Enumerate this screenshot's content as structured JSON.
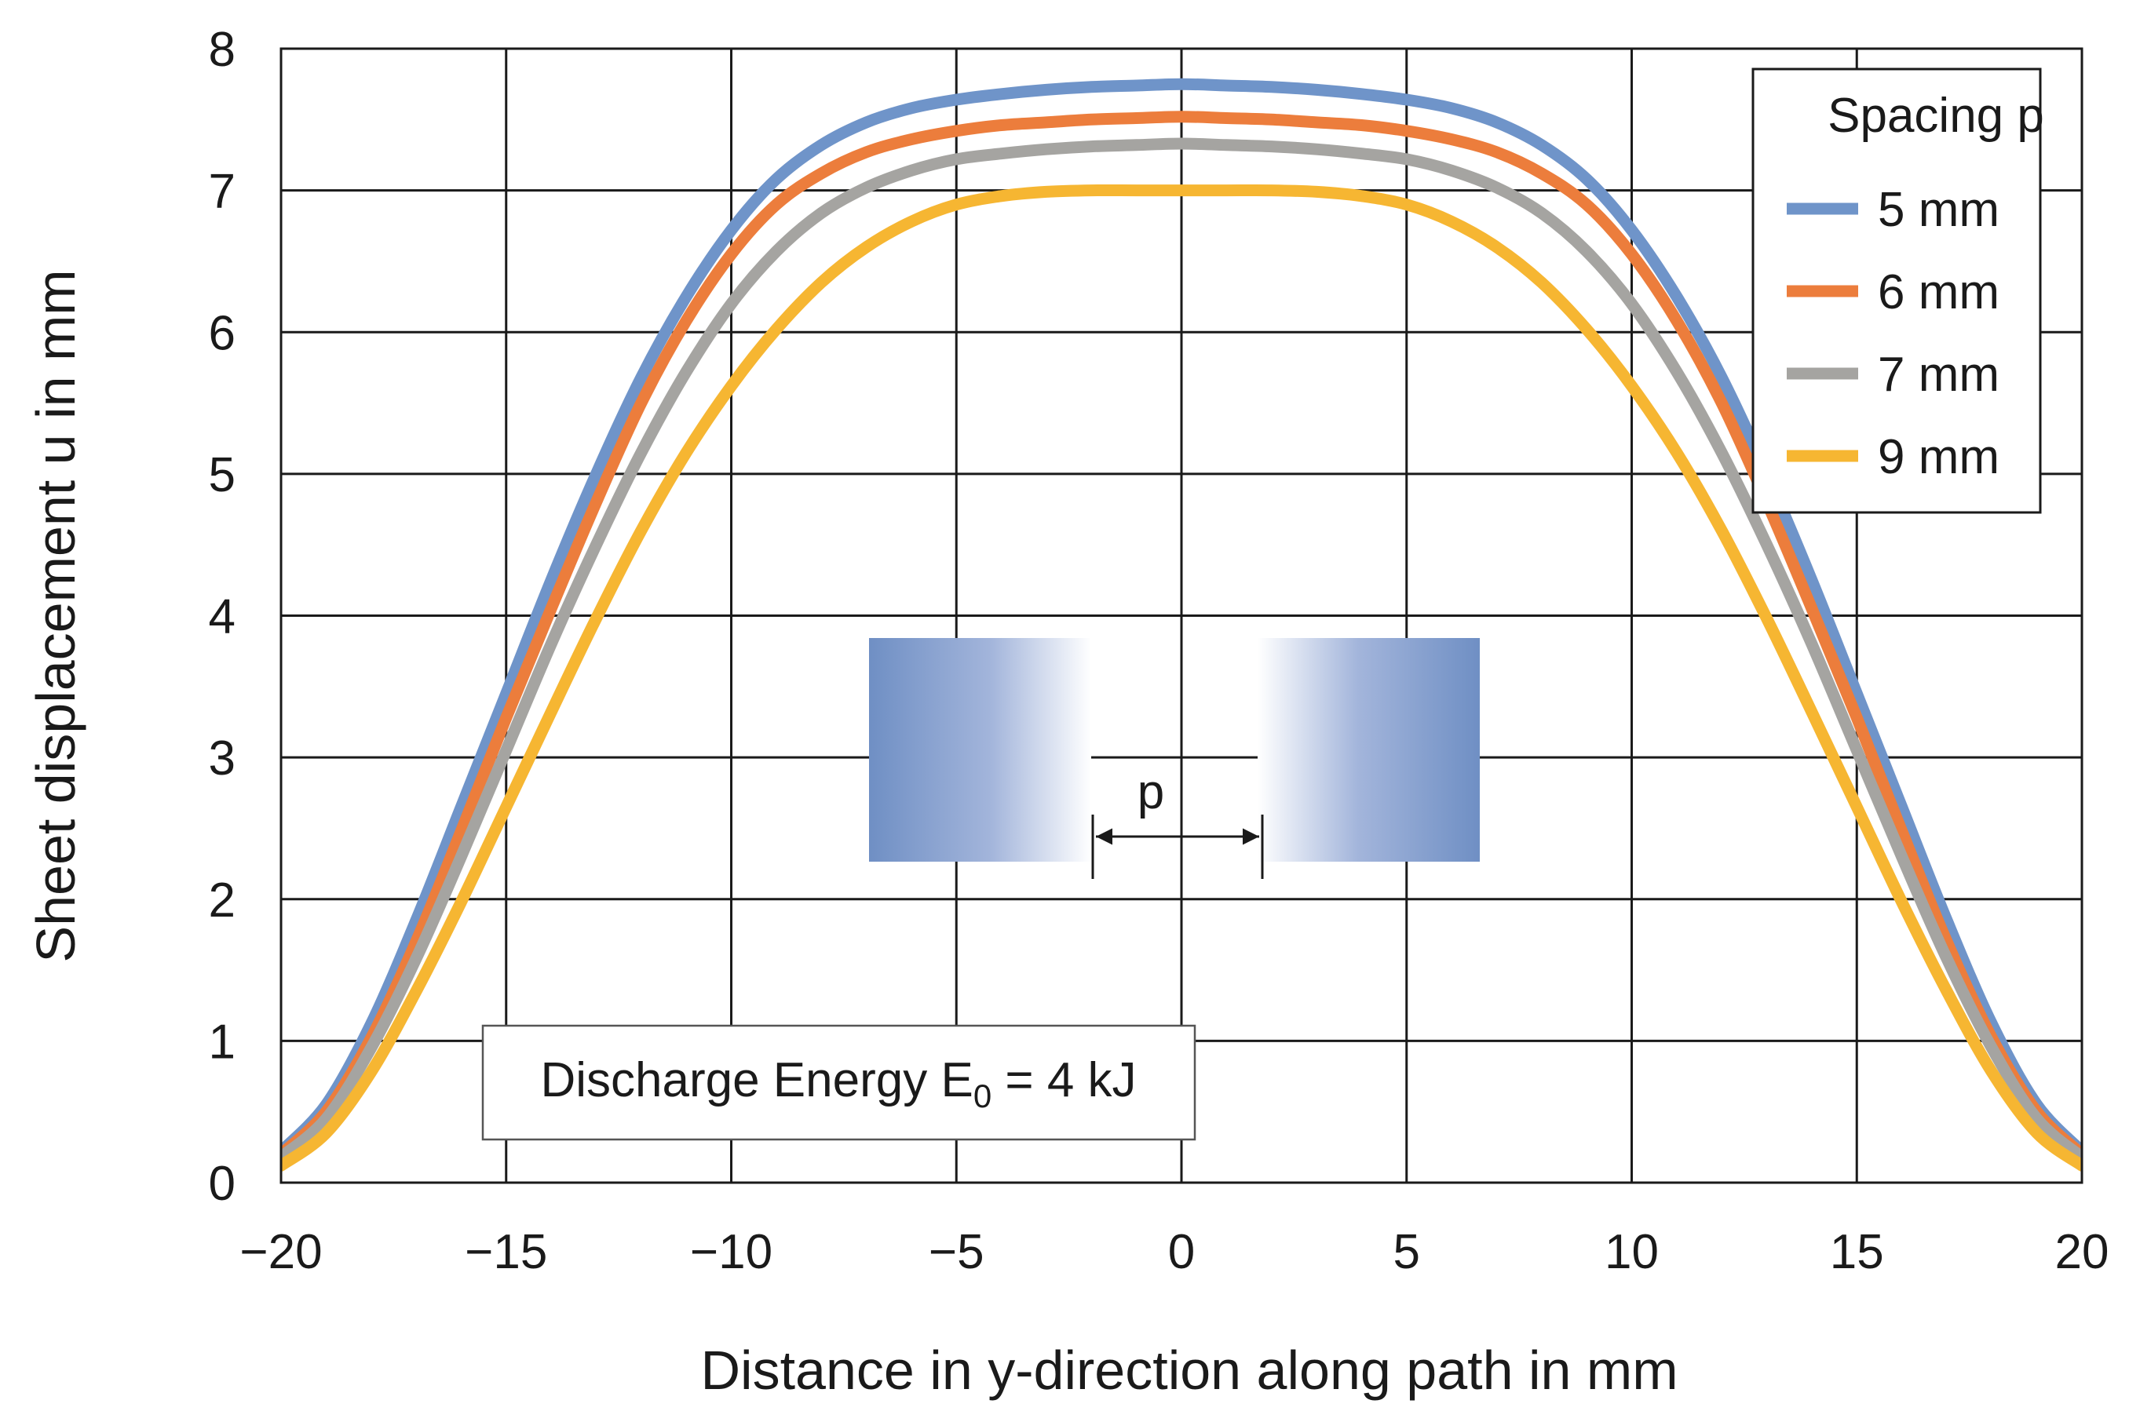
{
  "chart_data": {
    "type": "line",
    "title": "",
    "xlabel": "Distance in y-direction along path in mm",
    "ylabel": "Sheet displacement u in mm",
    "xlim": [
      -20,
      20
    ],
    "ylim": [
      0,
      8
    ],
    "xticks": [
      -20,
      -15,
      -10,
      -5,
      0,
      5,
      10,
      15,
      20
    ],
    "xtick_labels": [
      "−20",
      "−15",
      "−10",
      "−5",
      "0",
      "5",
      "10",
      "15",
      "20"
    ],
    "yticks": [
      0,
      1,
      2,
      3,
      4,
      5,
      6,
      7,
      8
    ],
    "ytick_labels": [
      "0",
      "1",
      "2",
      "3",
      "4",
      "5",
      "6",
      "7",
      "8"
    ],
    "grid": true,
    "legend": {
      "title": "Spacing p",
      "position": "top-right"
    },
    "x": [
      -20,
      -19,
      -18,
      -17,
      -16,
      -15,
      -14,
      -13,
      -12,
      -11,
      -10,
      -9,
      -8,
      -7,
      -6,
      -5,
      -4,
      -3,
      -2,
      -1,
      0,
      1,
      2,
      3,
      4,
      5,
      6,
      7,
      8,
      9,
      10,
      11,
      12,
      13,
      14,
      15,
      16,
      17,
      18,
      19,
      20
    ],
    "series": [
      {
        "name": "5 mm",
        "color": "#6f94c9",
        "values": [
          0.22,
          0.55,
          1.12,
          1.85,
          2.65,
          3.45,
          4.25,
          5.0,
          5.68,
          6.25,
          6.72,
          7.08,
          7.32,
          7.48,
          7.58,
          7.64,
          7.68,
          7.71,
          7.73,
          7.74,
          7.75,
          7.74,
          7.73,
          7.71,
          7.68,
          7.64,
          7.58,
          7.48,
          7.32,
          7.08,
          6.72,
          6.25,
          5.68,
          5.0,
          4.25,
          3.45,
          2.65,
          1.85,
          1.12,
          0.55,
          0.22
        ]
      },
      {
        "name": "6 mm",
        "color": "#ec7d3c",
        "values": [
          0.2,
          0.5,
          1.02,
          1.7,
          2.48,
          3.28,
          4.05,
          4.8,
          5.5,
          6.08,
          6.55,
          6.9,
          7.12,
          7.27,
          7.36,
          7.42,
          7.46,
          7.48,
          7.5,
          7.51,
          7.52,
          7.51,
          7.5,
          7.48,
          7.46,
          7.42,
          7.36,
          7.27,
          7.12,
          6.9,
          6.55,
          6.08,
          5.5,
          4.8,
          4.05,
          3.28,
          2.48,
          1.7,
          1.02,
          0.5,
          0.2
        ]
      },
      {
        "name": "7 mm",
        "color": "#a5a4a1",
        "values": [
          0.18,
          0.45,
          0.95,
          1.58,
          2.3,
          3.05,
          3.8,
          4.5,
          5.15,
          5.72,
          6.2,
          6.57,
          6.84,
          7.02,
          7.14,
          7.22,
          7.26,
          7.29,
          7.31,
          7.32,
          7.33,
          7.32,
          7.31,
          7.29,
          7.26,
          7.22,
          7.14,
          7.02,
          6.84,
          6.57,
          6.2,
          5.72,
          5.15,
          4.5,
          3.8,
          3.05,
          2.3,
          1.58,
          0.95,
          0.45,
          0.18
        ]
      },
      {
        "name": "9 mm",
        "color": "#f6b632",
        "values": [
          0.12,
          0.35,
          0.78,
          1.35,
          1.98,
          2.65,
          3.32,
          3.98,
          4.6,
          5.15,
          5.62,
          6.02,
          6.35,
          6.6,
          6.78,
          6.9,
          6.96,
          6.99,
          7.0,
          7.0,
          7.0,
          7.0,
          7.0,
          6.99,
          6.96,
          6.9,
          6.78,
          6.6,
          6.35,
          6.02,
          5.62,
          5.15,
          4.6,
          3.98,
          3.32,
          2.65,
          1.98,
          1.35,
          0.78,
          0.35,
          0.12
        ]
      }
    ],
    "annotations": {
      "energy_box": {
        "prefix": "Discharge Energy E",
        "subscript": "0",
        "suffix": " = 4 kJ"
      },
      "spacing_label": "p"
    }
  }
}
